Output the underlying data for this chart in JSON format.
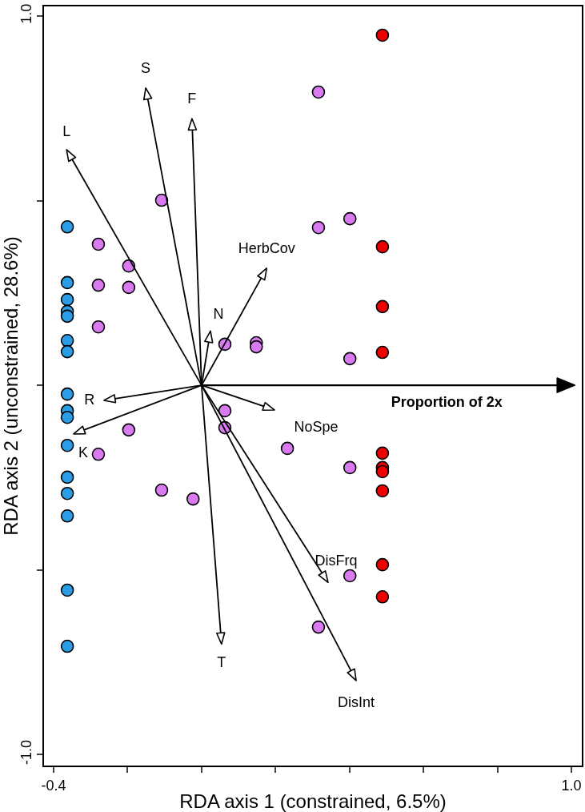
{
  "chart_data": {
    "type": "scatter",
    "xlabel": "RDA axis 1 (constrained, 6.5%)",
    "ylabel": "RDA axis 2 (unconstrained, 28.6%)",
    "marker": "circle",
    "grid": false,
    "xlim": [
      -0.426,
      1.028
    ],
    "ylim": [
      -1.03,
      1.026
    ],
    "xticks": [
      {
        "value": -0.4,
        "label": "-0.4"
      },
      {
        "value": -0.2,
        "label": null
      },
      {
        "value": 0,
        "label": null
      },
      {
        "value": 0.2,
        "label": null
      },
      {
        "value": 0.4,
        "label": null
      },
      {
        "value": 0.6,
        "label": null
      },
      {
        "value": 0.8,
        "label": null
      },
      {
        "value": 1.0,
        "label": "1.0"
      }
    ],
    "yticks": [
      {
        "value": -1.0,
        "label": "-1.0"
      },
      {
        "value": -0.5,
        "label": null
      },
      {
        "value": 0,
        "label": null
      },
      {
        "value": 0.5,
        "label": null
      },
      {
        "value": 1.0,
        "label": "1.0"
      }
    ],
    "series": [
      {
        "color": "#2a9de6",
        "x": [
          -0.363,
          -0.363,
          -0.363,
          -0.363,
          -0.363,
          -0.363,
          -0.363,
          -0.363,
          -0.363,
          -0.363,
          -0.363,
          -0.363,
          -0.363,
          -0.363,
          -0.363,
          -0.363
        ],
        "values": [
          0.429,
          0.278,
          0.232,
          0.2,
          0.187,
          0.121,
          0.091,
          -0.024,
          -0.069,
          -0.087,
          -0.163,
          -0.249,
          -0.293,
          -0.354,
          -0.555,
          -0.707
        ]
      },
      {
        "color": "#d97af0",
        "x": [
          0.316,
          -0.108,
          0.401,
          0.316,
          -0.279,
          -0.197,
          -0.279,
          -0.197,
          -0.279,
          0.063,
          0.148,
          0.148,
          0.401,
          0.063,
          0.063,
          -0.197,
          0.232,
          -0.279,
          0.401,
          -0.108,
          -0.023,
          0.401,
          0.316
        ],
        "values": [
          0.794,
          0.501,
          0.451,
          0.427,
          0.382,
          0.323,
          0.271,
          0.265,
          0.158,
          0.111,
          0.115,
          0.104,
          0.072,
          -0.069,
          -0.115,
          -0.121,
          -0.171,
          -0.187,
          -0.223,
          -0.284,
          -0.308,
          -0.516,
          -0.655
        ]
      },
      {
        "color": "#ee0000",
        "x": [
          0.489,
          0.489,
          0.489,
          0.489,
          0.489,
          0.489,
          0.489,
          0.489,
          0.489,
          0.489
        ],
        "values": [
          0.948,
          0.375,
          0.213,
          0.089,
          -0.184,
          -0.223,
          -0.234,
          -0.286,
          -0.486,
          -0.573
        ]
      }
    ],
    "annotations": [
      "L",
      "S",
      "F",
      "HerbCov",
      "N",
      "R",
      "K",
      "NoSpe",
      "DisFrq",
      "DisInt",
      "T",
      "Proportion of 2x"
    ]
  }
}
